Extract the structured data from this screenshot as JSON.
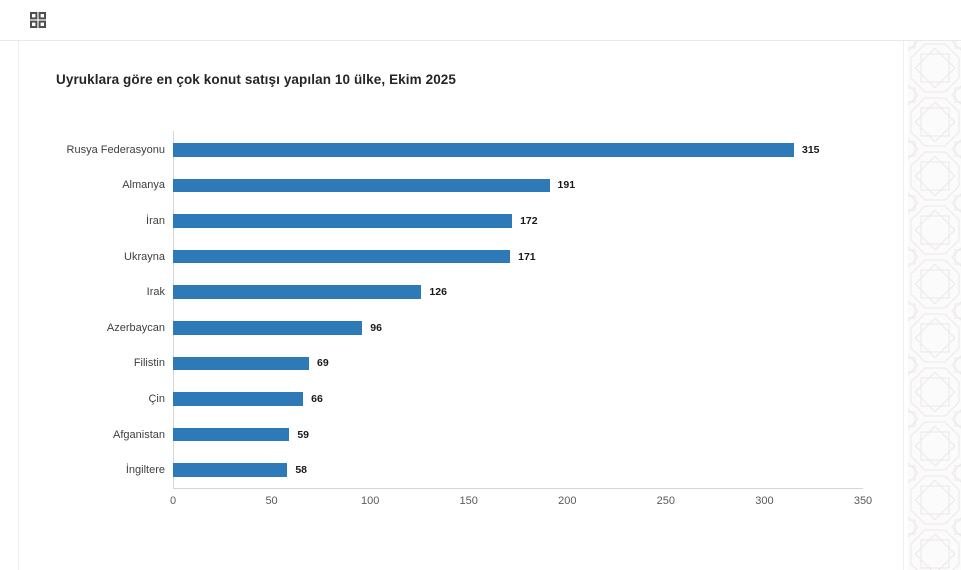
{
  "toolbar": {
    "grid_icon": "grid-view"
  },
  "chart_data": {
    "type": "bar",
    "orientation": "horizontal",
    "title": "Uyruklara göre en çok konut satışı yapılan 10 ülke, Ekim 2025",
    "categories": [
      "Rusya Federasyonu",
      "Almanya",
      "İran",
      "Ukrayna",
      "Irak",
      "Azerbaycan",
      "Filistin",
      "Çin",
      "Afganistan",
      "İngiltere"
    ],
    "values": [
      315,
      191,
      172,
      171,
      126,
      96,
      69,
      66,
      59,
      58
    ],
    "data_labels": [
      "315",
      "191",
      "172",
      "171",
      "126",
      "96",
      "69",
      "66",
      "59",
      "58"
    ],
    "xlabel": "",
    "ylabel": "",
    "xlim": [
      0,
      350
    ],
    "x_ticks": [
      "0",
      "50",
      "100",
      "150",
      "200",
      "250",
      "300",
      "350"
    ],
    "grid": false,
    "legend": null,
    "bar_color": "#2E79B8"
  },
  "colors": {
    "accent": "#2E79B8",
    "axis_line": "#d6d6d6",
    "card_border": "#efefef",
    "title_text": "#252525",
    "tick_text": "#5a5a5a",
    "pattern_line": "#ece8e7",
    "pattern_bg": "#fcfbfb"
  }
}
